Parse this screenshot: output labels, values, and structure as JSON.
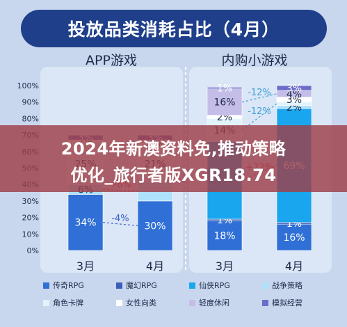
{
  "title": "投放品类消耗占比（4月）",
  "banner": {
    "line1": "2024年新澳资料免,推动策略",
    "line2": "优化_旅行者版XGR18.74"
  },
  "chart_data": [
    {
      "type": "bar",
      "title": "APP游戏",
      "stacked": true,
      "categories": [
        "3月",
        "4月"
      ],
      "ylim": [
        0,
        100
      ],
      "yticks": [
        "0%",
        "10%",
        "20%",
        "30%",
        "40%",
        "50%",
        "60%",
        "70%",
        "80%",
        "90%",
        "100%"
      ],
      "series": [
        {
          "name": "传奇RPG",
          "values": [
            34,
            30
          ],
          "labels": [
            "34%",
            "30%"
          ]
        },
        {
          "name": "魔幻RPG",
          "values": [
            0,
            0
          ],
          "labels": [
            "",
            ""
          ]
        },
        {
          "name": "仙侠RPG",
          "values": [
            0,
            0
          ],
          "labels": [
            "",
            ""
          ]
        },
        {
          "name": "战争策略",
          "values": [
            6,
            12
          ],
          "labels": [
            "6%",
            ""
          ]
        },
        {
          "name": "角色卡牌",
          "values": [
            25,
            21
          ],
          "labels": [
            "25%",
            "21%"
          ]
        },
        {
          "name": "女性向类",
          "values": [
            2,
            4
          ],
          "labels": [
            "2%",
            "4%"
          ]
        },
        {
          "name": "轻度休闲",
          "values": [
            0,
            0
          ],
          "labels": [
            "",
            ""
          ]
        },
        {
          "name": "模拟经营",
          "values": [
            3,
            3
          ],
          "labels": [
            "3%",
            "3%"
          ]
        }
      ],
      "annotations": [
        "-4%",
        "+6%"
      ]
    },
    {
      "type": "bar",
      "title": "内购小游戏",
      "stacked": true,
      "categories": [
        "3月",
        "4月"
      ],
      "ylim": [
        0,
        100
      ],
      "series": [
        {
          "name": "传奇RPG",
          "values": [
            18,
            16
          ],
          "labels": [
            "18%",
            "16%"
          ]
        },
        {
          "name": "魔幻RPG",
          "values": [
            1,
            1
          ],
          "labels": [
            "1%",
            "1%"
          ]
        },
        {
          "name": "仙侠RPG",
          "values": [
            47,
            69
          ],
          "labels": [
            "",
            "69%"
          ]
        },
        {
          "name": "战争策略",
          "values": [
            0,
            2
          ],
          "labels": [
            "",
            "2%"
          ]
        },
        {
          "name": "角色卡牌",
          "values": [
            14,
            2
          ],
          "labels": [
            "14%",
            ""
          ]
        },
        {
          "name": "女性向类",
          "values": [
            2,
            3
          ],
          "labels": [
            "2%",
            "3%"
          ]
        },
        {
          "name": "轻度休闲",
          "values": [
            16,
            4
          ],
          "labels": [
            "16%",
            "4%"
          ]
        },
        {
          "name": "模拟经营",
          "values": [
            1,
            3
          ],
          "labels": [
            "1%",
            "3%"
          ]
        }
      ],
      "annotations": [
        "-12%",
        "-12%",
        "+22%"
      ]
    }
  ],
  "legend": [
    {
      "name": "传奇RPG",
      "color": "#2f6fd6"
    },
    {
      "name": "魔幻RPG",
      "color": "#3a5fb6"
    },
    {
      "name": "仙侠RPG",
      "color": "#19a6ee"
    },
    {
      "name": "战争策略",
      "color": "#aee1fb"
    },
    {
      "name": "角色卡牌",
      "color": "#e2f3fa"
    },
    {
      "name": "女性向类",
      "color": "#ffffff"
    },
    {
      "name": "轻度休闲",
      "color": "#c4bde8"
    },
    {
      "name": "模拟经营",
      "color": "#6d6cc9"
    }
  ]
}
